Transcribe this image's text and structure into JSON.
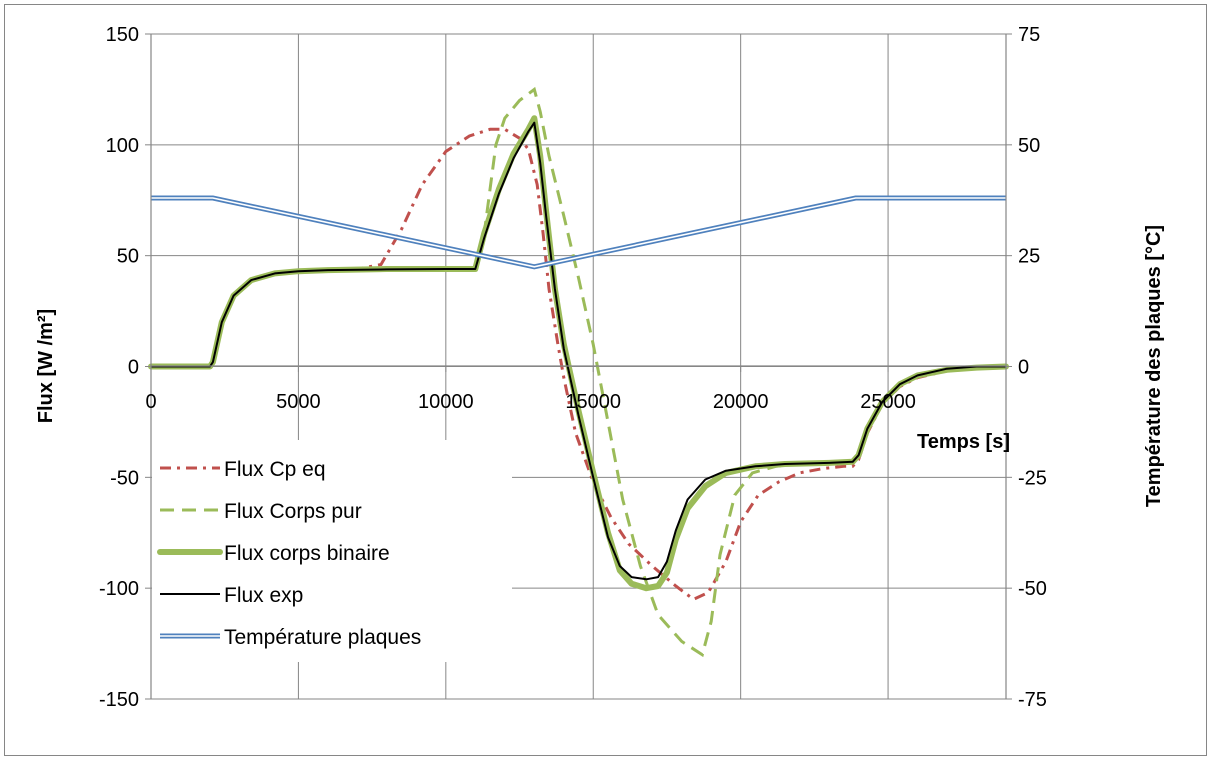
{
  "chart_data": {
    "type": "line",
    "xlabel": "Temps [s]",
    "ylabel": "Flux [W /m²]",
    "y2label": "Température des plaques [°C]",
    "xlim": [
      0,
      29000
    ],
    "ylim": [
      -150,
      150
    ],
    "y2lim": [
      -75,
      75
    ],
    "x_ticks": [
      0,
      5000,
      10000,
      15000,
      20000,
      25000
    ],
    "x_tick_labels": [
      "0",
      "5000",
      "10000",
      "15000",
      "20000",
      "25000"
    ],
    "y_ticks": [
      150,
      100,
      50,
      0,
      -50,
      -100,
      -150
    ],
    "y_tick_labels": [
      "150",
      "100",
      "50",
      "0",
      "-50",
      "-100",
      "-150"
    ],
    "y2_ticks": [
      75,
      50,
      25,
      0,
      -25,
      -50,
      -75
    ],
    "y2_tick_labels": [
      "75",
      "50",
      "25",
      "0",
      "-25",
      "-50",
      "-75"
    ],
    "grid": true,
    "legend_position": "bottom-left",
    "series": [
      {
        "name": "Flux Cp eq",
        "color": "#c0504d",
        "style": "dash-dot",
        "axis": "left",
        "points": [
          [
            0,
            0
          ],
          [
            2000,
            0
          ],
          [
            2100,
            2
          ],
          [
            2400,
            20
          ],
          [
            2800,
            32
          ],
          [
            3400,
            39
          ],
          [
            4200,
            42
          ],
          [
            5000,
            43
          ],
          [
            6000,
            44
          ],
          [
            7000,
            44
          ],
          [
            7800,
            46
          ],
          [
            8500,
            62
          ],
          [
            9200,
            82
          ],
          [
            10000,
            97
          ],
          [
            10800,
            104
          ],
          [
            11500,
            107
          ],
          [
            12000,
            107
          ],
          [
            12500,
            103
          ],
          [
            12800,
            98
          ],
          [
            13100,
            82
          ],
          [
            13300,
            60
          ],
          [
            13500,
            35
          ],
          [
            13800,
            10
          ],
          [
            14000,
            -5
          ],
          [
            14400,
            -30
          ],
          [
            15000,
            -52
          ],
          [
            15600,
            -68
          ],
          [
            16200,
            -80
          ],
          [
            17000,
            -90
          ],
          [
            17800,
            -99
          ],
          [
            18400,
            -105
          ],
          [
            18900,
            -102
          ],
          [
            19500,
            -88
          ],
          [
            20000,
            -70
          ],
          [
            20600,
            -58
          ],
          [
            21300,
            -52
          ],
          [
            22000,
            -48
          ],
          [
            22800,
            -46
          ],
          [
            23500,
            -45
          ],
          [
            23800,
            -45
          ],
          [
            24000,
            -42
          ],
          [
            24300,
            -30
          ],
          [
            24800,
            -17
          ],
          [
            25400,
            -9
          ],
          [
            26000,
            -5
          ],
          [
            27000,
            -2
          ],
          [
            28000,
            -1
          ],
          [
            29000,
            0
          ]
        ]
      },
      {
        "name": "Flux Corps pur",
        "color": "#9bbb59",
        "style": "dash",
        "axis": "left",
        "points": [
          [
            0,
            0
          ],
          [
            2000,
            0
          ],
          [
            2100,
            2
          ],
          [
            2400,
            20
          ],
          [
            2800,
            32
          ],
          [
            3400,
            39
          ],
          [
            4200,
            42
          ],
          [
            5000,
            43
          ],
          [
            6000,
            43.5
          ],
          [
            8000,
            44
          ],
          [
            10000,
            44
          ],
          [
            11000,
            44
          ],
          [
            11300,
            60
          ],
          [
            11700,
            100
          ],
          [
            12000,
            112
          ],
          [
            12500,
            120
          ],
          [
            13000,
            125
          ],
          [
            13200,
            115
          ],
          [
            13500,
            95
          ],
          [
            14000,
            68
          ],
          [
            14500,
            40
          ],
          [
            15000,
            10
          ],
          [
            15500,
            -25
          ],
          [
            16000,
            -60
          ],
          [
            16600,
            -90
          ],
          [
            17200,
            -112
          ],
          [
            18000,
            -124
          ],
          [
            18700,
            -130
          ],
          [
            19000,
            -115
          ],
          [
            19300,
            -85
          ],
          [
            19800,
            -58
          ],
          [
            20400,
            -48
          ],
          [
            21200,
            -45
          ],
          [
            22000,
            -44
          ],
          [
            23000,
            -43.5
          ],
          [
            23800,
            -43
          ],
          [
            24000,
            -40
          ],
          [
            24300,
            -28
          ],
          [
            24800,
            -16
          ],
          [
            25400,
            -8
          ],
          [
            26000,
            -4
          ],
          [
            27000,
            -1.5
          ],
          [
            28000,
            -0.5
          ],
          [
            29000,
            0
          ]
        ]
      },
      {
        "name": "Flux corps binaire",
        "color": "#9bbb59",
        "style": "thick",
        "axis": "left",
        "points": [
          [
            0,
            0
          ],
          [
            2000,
            0
          ],
          [
            2100,
            2
          ],
          [
            2400,
            20
          ],
          [
            2800,
            32
          ],
          [
            3400,
            39
          ],
          [
            4200,
            42
          ],
          [
            5000,
            43
          ],
          [
            6000,
            43.5
          ],
          [
            8000,
            44
          ],
          [
            10000,
            44
          ],
          [
            11000,
            44
          ],
          [
            11300,
            60
          ],
          [
            11800,
            80
          ],
          [
            12300,
            96
          ],
          [
            12800,
            107
          ],
          [
            13000,
            112
          ],
          [
            13200,
            95
          ],
          [
            13400,
            70
          ],
          [
            13700,
            35
          ],
          [
            14000,
            10
          ],
          [
            14500,
            -20
          ],
          [
            15000,
            -48
          ],
          [
            15500,
            -75
          ],
          [
            15900,
            -92
          ],
          [
            16300,
            -98
          ],
          [
            16800,
            -100
          ],
          [
            17200,
            -99
          ],
          [
            17500,
            -93
          ],
          [
            17800,
            -78
          ],
          [
            18200,
            -64
          ],
          [
            18800,
            -54
          ],
          [
            19500,
            -48
          ],
          [
            20500,
            -45
          ],
          [
            21500,
            -44
          ],
          [
            23000,
            -43.5
          ],
          [
            23800,
            -43
          ],
          [
            24000,
            -40
          ],
          [
            24300,
            -28
          ],
          [
            24800,
            -16
          ],
          [
            25400,
            -8
          ],
          [
            26000,
            -4
          ],
          [
            27000,
            -1.5
          ],
          [
            28000,
            -0.5
          ],
          [
            29000,
            0
          ]
        ]
      },
      {
        "name": "Flux exp",
        "color": "#000000",
        "style": "solid",
        "axis": "left",
        "points": [
          [
            0,
            0
          ],
          [
            2000,
            0
          ],
          [
            2100,
            2
          ],
          [
            2400,
            20
          ],
          [
            2800,
            32
          ],
          [
            3400,
            39
          ],
          [
            4200,
            42
          ],
          [
            5000,
            43
          ],
          [
            6000,
            43.5
          ],
          [
            8000,
            43.8
          ],
          [
            10000,
            44
          ],
          [
            11000,
            44
          ],
          [
            11300,
            58
          ],
          [
            11800,
            78
          ],
          [
            12300,
            94
          ],
          [
            12800,
            106
          ],
          [
            13000,
            110
          ],
          [
            13200,
            92
          ],
          [
            13400,
            68
          ],
          [
            13700,
            35
          ],
          [
            14000,
            8
          ],
          [
            14500,
            -22
          ],
          [
            15000,
            -50
          ],
          [
            15500,
            -77
          ],
          [
            15900,
            -90
          ],
          [
            16300,
            -95
          ],
          [
            16800,
            -96
          ],
          [
            17200,
            -95
          ],
          [
            17500,
            -88
          ],
          [
            17800,
            -74
          ],
          [
            18200,
            -60
          ],
          [
            18800,
            -51
          ],
          [
            19500,
            -47
          ],
          [
            20500,
            -45
          ],
          [
            21500,
            -44
          ],
          [
            23000,
            -43.5
          ],
          [
            23800,
            -43
          ],
          [
            24000,
            -40
          ],
          [
            24300,
            -28
          ],
          [
            24800,
            -16
          ],
          [
            25400,
            -8
          ],
          [
            26000,
            -4
          ],
          [
            27000,
            -1
          ],
          [
            28000,
            0
          ],
          [
            29000,
            0
          ]
        ]
      },
      {
        "name": "Température plaques",
        "color": "#4f81bd",
        "style": "double",
        "axis": "right",
        "points": [
          [
            0,
            38
          ],
          [
            2100,
            38
          ],
          [
            13000,
            22.5
          ],
          [
            23900,
            38
          ],
          [
            29000,
            38
          ]
        ]
      }
    ]
  }
}
